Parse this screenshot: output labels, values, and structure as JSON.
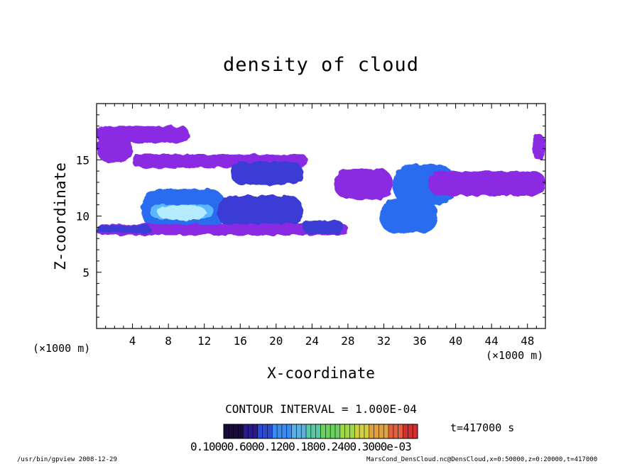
{
  "chart_data": {
    "type": "heatmap",
    "title": "density of cloud",
    "xlabel": "X-coordinate",
    "ylabel": "Z-coordinate",
    "x_unit": "(×1000 m)",
    "z_unit": "(×1000 m)",
    "xlim": [
      0,
      50
    ],
    "zlim": [
      0,
      20
    ],
    "x_ticks": [
      "4",
      "8",
      "12",
      "16",
      "20",
      "24",
      "28",
      "32",
      "36",
      "40",
      "44",
      "48"
    ],
    "z_ticks": [
      "5",
      "10",
      "15"
    ],
    "contour_interval_label": "CONTOUR INTERVAL = 1.000E-04",
    "colorbar_labels_text": "0.10000.6000.1200.1800.2400.3000e-03",
    "time_label": "t=417000 s",
    "colors": {
      "faint": "#7b1fd0",
      "low": "#8a2be2",
      "mid": "#3b3bd6",
      "high": "#2a6cf0",
      "peak": "#5ab8ff",
      "core": "#b6ecff"
    },
    "colorbar_colors": [
      "#1a0a3a",
      "#2b1a8a",
      "#2a4cd0",
      "#3a8cf0",
      "#5ab0e0",
      "#5ac8a0",
      "#6ad060",
      "#a0d848",
      "#d0d040",
      "#e0a040",
      "#e06040",
      "#d03030"
    ],
    "cloud_regions": [
      {
        "name": "upper-left layer",
        "x": [
          0.0,
          10.3
        ],
        "z": [
          16.5,
          18.0
        ],
        "level": "low"
      },
      {
        "name": "left block",
        "x": [
          0.0,
          4.0
        ],
        "z": [
          14.8,
          17.2
        ],
        "level": "low"
      },
      {
        "name": "upper band",
        "x": [
          4.0,
          23.5
        ],
        "z": [
          14.3,
          15.5
        ],
        "level": "low"
      },
      {
        "name": "mid patch 20km",
        "x": [
          15.0,
          23.0
        ],
        "z": [
          12.8,
          14.8
        ],
        "level": "mid"
      },
      {
        "name": "main cloud 8-14km",
        "x": [
          5.0,
          14.5
        ],
        "z": [
          8.8,
          12.4
        ],
        "level": "high"
      },
      {
        "name": "main cloud core",
        "x": [
          6.0,
          13.0
        ],
        "z": [
          9.8,
          11.0
        ],
        "level": "peak"
      },
      {
        "name": "right lobe 18km",
        "x": [
          13.5,
          23.0
        ],
        "z": [
          9.0,
          11.8
        ],
        "level": "mid"
      },
      {
        "name": "lower band",
        "x": [
          0.0,
          28.0
        ],
        "z": [
          8.3,
          9.3
        ],
        "level": "low"
      },
      {
        "name": "lower band dense",
        "x": [
          0.0,
          6.0
        ],
        "z": [
          8.5,
          9.2
        ],
        "level": "mid"
      },
      {
        "name": "patch 24km",
        "x": [
          23.0,
          27.5
        ],
        "z": [
          8.4,
          9.6
        ],
        "level": "mid"
      },
      {
        "name": "patch 28-32km",
        "x": [
          26.5,
          33.0
        ],
        "z": [
          11.5,
          14.2
        ],
        "level": "low"
      },
      {
        "name": "cloud 35km upper",
        "x": [
          33.0,
          40.0
        ],
        "z": [
          11.0,
          14.6
        ],
        "level": "high"
      },
      {
        "name": "cloud 35km lower",
        "x": [
          31.5,
          38.0
        ],
        "z": [
          8.5,
          11.5
        ],
        "level": "high"
      },
      {
        "name": "right band",
        "x": [
          37.0,
          50.0
        ],
        "z": [
          11.8,
          14.0
        ],
        "level": "low"
      },
      {
        "name": "right edge",
        "x": [
          48.5,
          50.0
        ],
        "z": [
          15.0,
          17.3
        ],
        "level": "low"
      }
    ]
  },
  "footer": {
    "left": "/usr/bin/gpview   2008-12-29",
    "right": "MarsCond_DensCloud.nc@DensCloud,x=0:50000,z=0:20000,t=417000"
  }
}
